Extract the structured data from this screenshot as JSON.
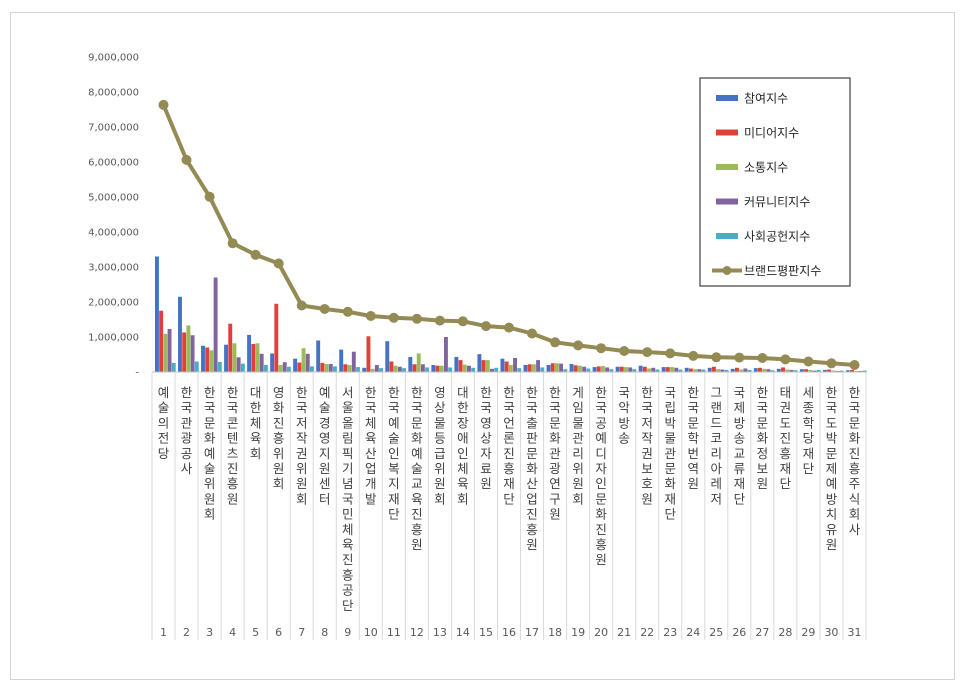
{
  "chart_data": {
    "type": "bar",
    "ylim": [
      0,
      9000000
    ],
    "yticks": [
      "-",
      "1,000,000",
      "2,000,000",
      "3,000,000",
      "4,000,000",
      "5,000,000",
      "6,000,000",
      "7,000,000",
      "8,000,000",
      "9,000,000"
    ],
    "legend_position": "top-right",
    "grid": false,
    "index_labels": [
      "1",
      "2",
      "3",
      "4",
      "5",
      "6",
      "7",
      "8",
      "9",
      "10",
      "11",
      "12",
      "13",
      "14",
      "15",
      "16",
      "17",
      "18",
      "19",
      "20",
      "21",
      "22",
      "23",
      "24",
      "25",
      "26",
      "27",
      "28",
      "29",
      "30",
      "31"
    ],
    "categories": [
      "예술의전당",
      "한국관광공사",
      "한국문화예술위원회",
      "한국콘텐츠진흥원",
      "대한체육회",
      "영화진흥위원회",
      "한국저작권위원회",
      "예술경영지원센터",
      "서울올림픽기념국민체육진흥공단",
      "한국체육산업개발",
      "한국예술인복지재단",
      "한국문화예술교육진흥원",
      "영상물등급위원회",
      "대한장애인체육회",
      "한국영상자료원",
      "한국언론진흥재단",
      "한국출판문화산업진흥원",
      "한국문화관광연구원",
      "게임물관리위원회",
      "한국공예디자인문화진흥원",
      "국악방송",
      "한국저작권보호원",
      "국립박물관문화재단",
      "한국문학번역원",
      "그랜드코리아레저",
      "국제방송교류재단",
      "한국문화정보원",
      "태권도진흥재단",
      "세종학당재단",
      "한국도박문제예방치유원",
      "한국문화진흥주식회사"
    ],
    "series": [
      {
        "name": "참여지수",
        "color": "#4472c4",
        "values": [
          3300000,
          2150000,
          750000,
          780000,
          1060000,
          530000,
          380000,
          900000,
          640000,
          120000,
          880000,
          430000,
          200000,
          430000,
          510000,
          380000,
          200000,
          200000,
          230000,
          140000,
          150000,
          180000,
          140000,
          120000,
          120000,
          90000,
          110000,
          90000,
          80000,
          60000,
          50000
        ]
      },
      {
        "name": "미디어지수",
        "color": "#e0403a",
        "values": [
          1750000,
          1130000,
          700000,
          1380000,
          800000,
          1950000,
          270000,
          260000,
          220000,
          1020000,
          300000,
          220000,
          180000,
          340000,
          340000,
          300000,
          220000,
          250000,
          190000,
          160000,
          150000,
          150000,
          140000,
          100000,
          150000,
          120000,
          120000,
          130000,
          80000,
          70000,
          60000
        ]
      },
      {
        "name": "소통지수",
        "color": "#9bbb59",
        "values": [
          1090000,
          1330000,
          620000,
          820000,
          820000,
          200000,
          680000,
          230000,
          200000,
          90000,
          180000,
          530000,
          180000,
          210000,
          340000,
          200000,
          220000,
          250000,
          180000,
          170000,
          140000,
          100000,
          140000,
          80000,
          80000,
          70000,
          90000,
          70000,
          60000,
          40000,
          30000
        ]
      },
      {
        "name": "커뮤니티지수",
        "color": "#8064a2",
        "values": [
          1230000,
          1050000,
          2700000,
          420000,
          520000,
          280000,
          520000,
          230000,
          580000,
          200000,
          150000,
          220000,
          1000000,
          180000,
          90000,
          400000,
          340000,
          240000,
          150000,
          130000,
          130000,
          120000,
          120000,
          80000,
          70000,
          100000,
          80000,
          60000,
          40000,
          30000,
          30000
        ]
      },
      {
        "name": "사회공헌지수",
        "color": "#4bacc6",
        "values": [
          260000,
          300000,
          290000,
          240000,
          200000,
          150000,
          160000,
          160000,
          140000,
          110000,
          110000,
          130000,
          130000,
          120000,
          120000,
          110000,
          130000,
          80000,
          100000,
          80000,
          80000,
          70000,
          70000,
          70000,
          60000,
          60000,
          50000,
          50000,
          60000,
          40000,
          40000
        ]
      },
      {
        "name": "브랜드평판지수",
        "color": "#948a54",
        "values": [
          7630000,
          6060000,
          5010000,
          3680000,
          3350000,
          3100000,
          1900000,
          1800000,
          1720000,
          1600000,
          1550000,
          1520000,
          1470000,
          1450000,
          1310000,
          1270000,
          1100000,
          850000,
          760000,
          680000,
          600000,
          570000,
          530000,
          460000,
          420000,
          410000,
          400000,
          360000,
          300000,
          250000,
          200000
        ]
      }
    ]
  }
}
